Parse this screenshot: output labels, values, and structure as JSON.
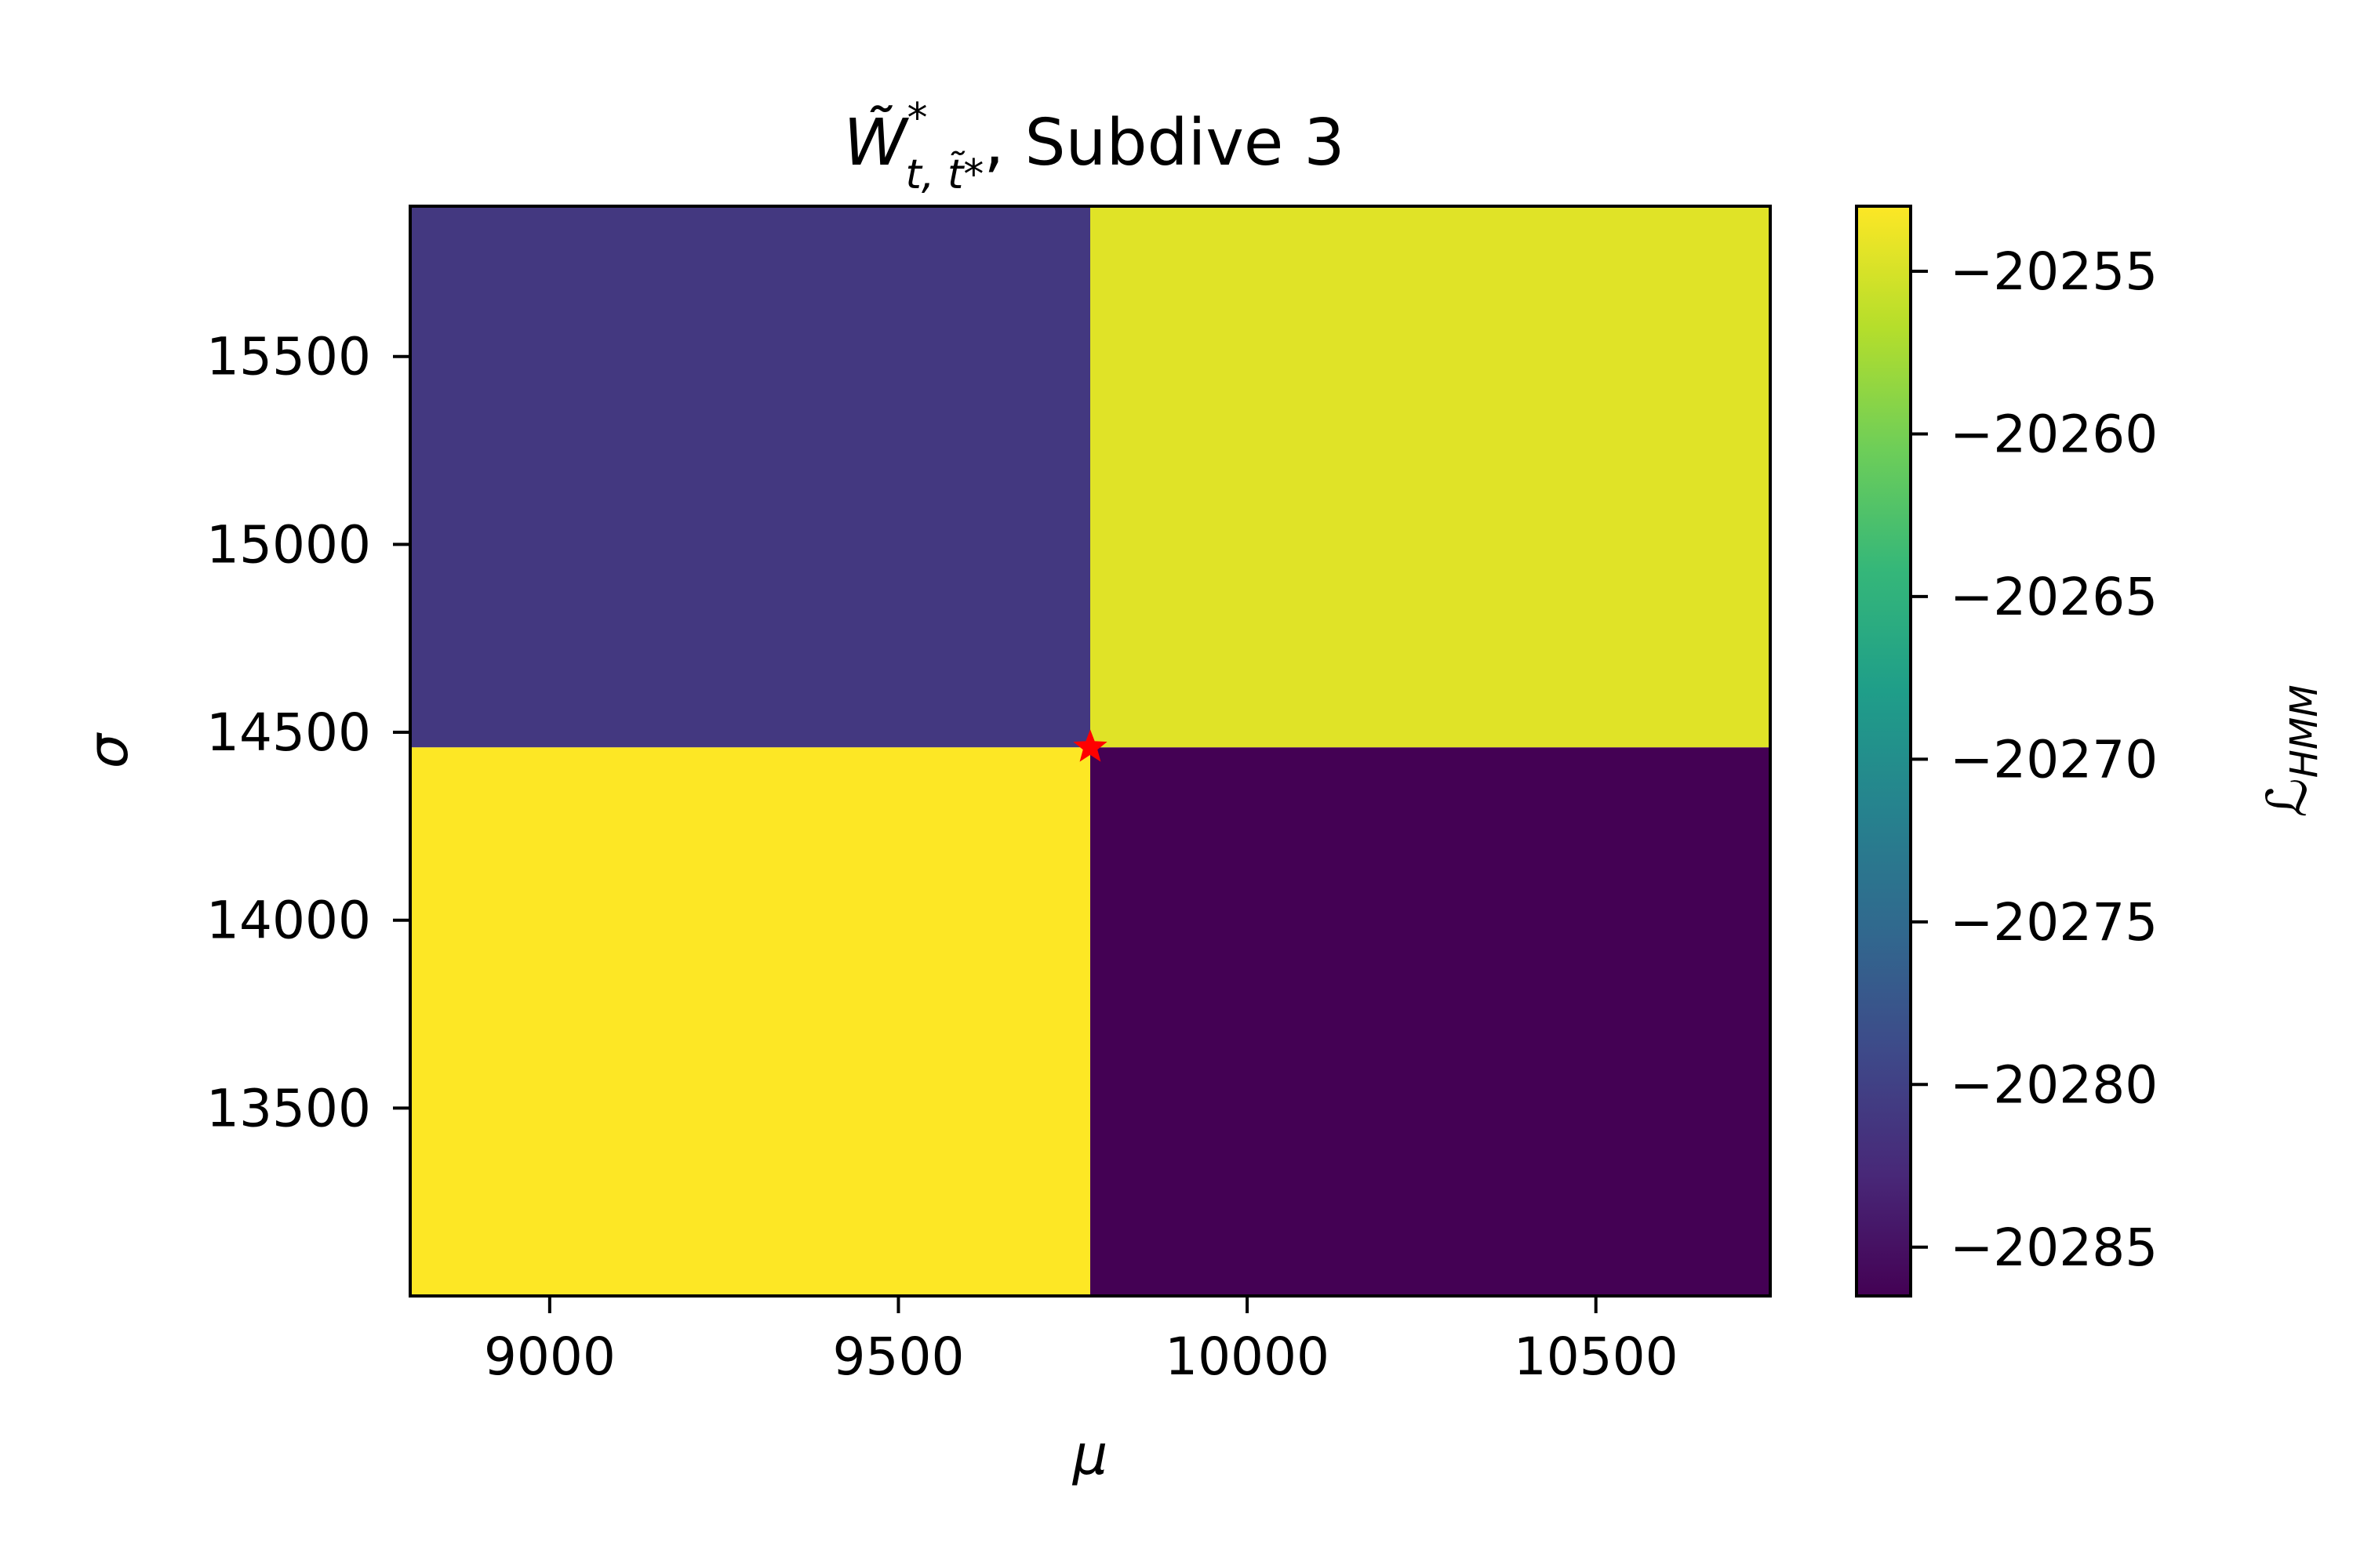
{
  "chart_data": {
    "type": "heatmap",
    "title": {
      "math_symbol": "W̃",
      "math_superscript": "*",
      "math_subscript": "t, t̃*",
      "text": ", Subdive 3"
    },
    "xlabel": "μ",
    "ylabel": "σ",
    "colorbar_label": {
      "symbol": "ℒ",
      "subscript": "HMM"
    },
    "xlim": [
      8800,
      10750
    ],
    "ylim": [
      13000,
      15900
    ],
    "x_edges": [
      8800,
      9775,
      10750
    ],
    "y_edges": [
      13000,
      14460,
      15900
    ],
    "xticks": [
      9000,
      9500,
      10000,
      10500
    ],
    "yticks": [
      13500,
      14000,
      14500,
      15000,
      15500
    ],
    "cells": [
      {
        "x_range": [
          8800,
          9775
        ],
        "y_range": [
          13000,
          14460
        ],
        "value": -20253
      },
      {
        "x_range": [
          9775,
          10750
        ],
        "y_range": [
          13000,
          14460
        ],
        "value": -20286.5
      },
      {
        "x_range": [
          8800,
          9775
        ],
        "y_range": [
          14460,
          15900
        ],
        "value": -20281
      },
      {
        "x_range": [
          9775,
          10750
        ],
        "y_range": [
          14460,
          15900
        ],
        "value": -20254.5
      }
    ],
    "colorbar": {
      "colormap": "viridis",
      "vmin": -20286.5,
      "vmax": -20253,
      "ticks": [
        -20255,
        -20260,
        -20265,
        -20270,
        -20275,
        -20280,
        -20285
      ],
      "tick_labels": [
        "−20255",
        "−20260",
        "−20265",
        "−20270",
        "−20275",
        "−20280",
        "−20285"
      ]
    },
    "marker": {
      "shape": "star",
      "color": "#ff0000",
      "x": 9775,
      "y": 14460
    },
    "xtick_labels": [
      "9000",
      "9500",
      "10000",
      "10500"
    ],
    "ytick_labels": [
      "13500",
      "14000",
      "14500",
      "15000",
      "15500"
    ]
  },
  "colors": {
    "viridis_stops": [
      "#440154",
      "#482878",
      "#3e4989",
      "#31688e",
      "#26828e",
      "#1f9e89",
      "#35b779",
      "#6ece58",
      "#b5de2b",
      "#fde725"
    ]
  }
}
